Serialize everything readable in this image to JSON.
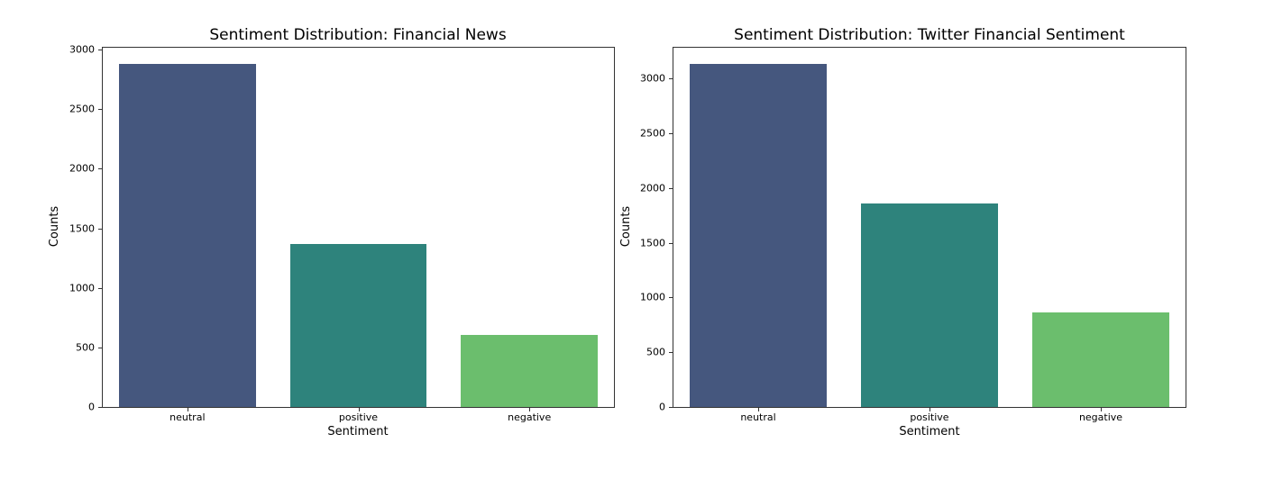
{
  "chart_data": [
    {
      "type": "bar",
      "title": "Sentiment Distribution: Financial News",
      "xlabel": "Sentiment",
      "ylabel": "Counts",
      "categories": [
        "neutral",
        "positive",
        "negative"
      ],
      "values": [
        2879,
        1368,
        605
      ],
      "colors": [
        "#45577e",
        "#2e837c",
        "#6bbe6d"
      ],
      "yticks": [
        0,
        500,
        1000,
        1500,
        2000,
        2500,
        3000
      ],
      "ylim": [
        0,
        3023
      ],
      "grid": false
    },
    {
      "type": "bar",
      "title": "Sentiment Distribution: Twitter Financial Sentiment",
      "xlabel": "Sentiment",
      "ylabel": "Counts",
      "categories": [
        "neutral",
        "positive",
        "negative"
      ],
      "values": [
        3131,
        1857,
        863
      ],
      "colors": [
        "#45577e",
        "#2e837c",
        "#6bbe6d"
      ],
      "yticks": [
        0,
        500,
        1000,
        1500,
        2000,
        2500,
        3000
      ],
      "ylim": [
        0,
        3288
      ],
      "grid": false
    }
  ]
}
